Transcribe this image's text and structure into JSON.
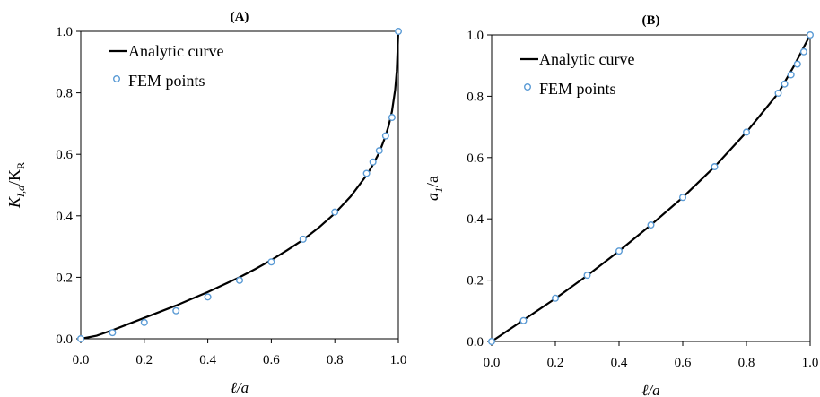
{
  "chart_data": [
    {
      "type": "line",
      "title": "(A)",
      "xlabel": "ℓ/a",
      "ylabel_main": "K",
      "ylabel_main_sub": "I,a",
      "ylabel_sep": "/K",
      "ylabel_sep_sub": "R",
      "xlim": [
        0,
        1
      ],
      "ylim": [
        0,
        1
      ],
      "xticks": [
        "0.0",
        "0.2",
        "0.4",
        "0.6",
        "0.8",
        "1.0"
      ],
      "yticks": [
        "0.0",
        "0.2",
        "0.4",
        "0.6",
        "0.8",
        "1.0"
      ],
      "legend_position": "top-left",
      "series": [
        {
          "name": "Analytic curve",
          "style": "line",
          "color": "#000000",
          "x": [
            0,
            0.05,
            0.1,
            0.15,
            0.2,
            0.25,
            0.3,
            0.35,
            0.4,
            0.45,
            0.5,
            0.55,
            0.6,
            0.65,
            0.7,
            0.75,
            0.8,
            0.85,
            0.9,
            0.92,
            0.94,
            0.96,
            0.97,
            0.98,
            0.99,
            0.995,
            1.0
          ],
          "y": [
            0,
            0.01,
            0.028,
            0.048,
            0.068,
            0.088,
            0.108,
            0.13,
            0.152,
            0.176,
            0.2,
            0.227,
            0.256,
            0.288,
            0.322,
            0.362,
            0.408,
            0.463,
            0.532,
            0.566,
            0.606,
            0.66,
            0.695,
            0.74,
            0.81,
            0.87,
            1.0
          ]
        },
        {
          "name": "FEM points",
          "style": "marker",
          "color": "#5B9BD5",
          "x": [
            0,
            0.1,
            0.2,
            0.3,
            0.4,
            0.5,
            0.6,
            0.7,
            0.8,
            0.9,
            0.92,
            0.94,
            0.96,
            0.98,
            1.0
          ],
          "y": [
            0,
            0.02,
            0.053,
            0.091,
            0.136,
            0.19,
            0.25,
            0.324,
            0.412,
            0.538,
            0.575,
            0.612,
            0.66,
            0.72,
            1.0
          ]
        }
      ]
    },
    {
      "type": "line",
      "title": "(B)",
      "xlabel": "ℓ/a",
      "ylabel_main": "a",
      "ylabel_main_sub": "1",
      "ylabel_sep": "/a",
      "ylabel_sep_sub": "",
      "xlim": [
        0,
        1
      ],
      "ylim": [
        0,
        1
      ],
      "xticks": [
        "0.0",
        "0.2",
        "0.4",
        "0.6",
        "0.8",
        "1.0"
      ],
      "yticks": [
        "0.0",
        "0.2",
        "0.4",
        "0.6",
        "0.8",
        "1.0"
      ],
      "legend_position": "top-left",
      "series": [
        {
          "name": "Analytic curve",
          "style": "line",
          "color": "#000000",
          "x": [
            0,
            0.1,
            0.2,
            0.3,
            0.4,
            0.5,
            0.6,
            0.7,
            0.8,
            0.9,
            0.95,
            1.0
          ],
          "y": [
            0,
            0.07,
            0.14,
            0.215,
            0.295,
            0.38,
            0.47,
            0.57,
            0.683,
            0.81,
            0.9,
            1.0
          ]
        },
        {
          "name": "FEM points",
          "style": "marker",
          "color": "#5B9BD5",
          "x": [
            0,
            0.1,
            0.2,
            0.3,
            0.4,
            0.5,
            0.6,
            0.7,
            0.8,
            0.9,
            0.92,
            0.94,
            0.96,
            0.98,
            1.0
          ],
          "y": [
            0,
            0.068,
            0.141,
            0.216,
            0.295,
            0.38,
            0.47,
            0.57,
            0.683,
            0.81,
            0.84,
            0.87,
            0.905,
            0.945,
            1.0
          ]
        }
      ]
    }
  ]
}
